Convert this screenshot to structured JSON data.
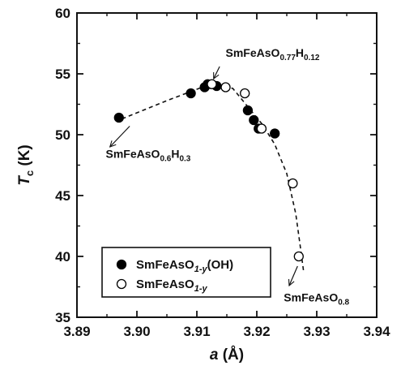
{
  "chart_data": {
    "type": "scatter",
    "xlabel": "a (Å)",
    "ylabel": "Tc (K)",
    "xlim": [
      3.89,
      3.94
    ],
    "ylim": [
      35,
      60
    ],
    "xticks": [
      3.89,
      3.9,
      3.91,
      3.92,
      3.93,
      3.94
    ],
    "yticks": [
      35,
      40,
      45,
      50,
      55,
      60
    ],
    "xtick_labels": [
      "3.89",
      "3.90",
      "3.91",
      "3.92",
      "3.93",
      "3.94"
    ],
    "ytick_labels": [
      "35",
      "40",
      "45",
      "50",
      "55",
      "60"
    ],
    "grid": false,
    "legend_position": "bottom-left",
    "series": [
      {
        "name": "SmFeAsO1-y(OH)",
        "marker": "filled-circle",
        "color": "#000000",
        "points": [
          {
            "x": 3.897,
            "y": 51.4
          },
          {
            "x": 3.909,
            "y": 53.4
          },
          {
            "x": 3.9113,
            "y": 53.9
          },
          {
            "x": 3.9118,
            "y": 54.15
          },
          {
            "x": 3.9133,
            "y": 54.0
          },
          {
            "x": 3.9185,
            "y": 52.0
          },
          {
            "x": 3.9195,
            "y": 51.2
          },
          {
            "x": 3.9203,
            "y": 50.5
          },
          {
            "x": 3.923,
            "y": 50.1
          }
        ]
      },
      {
        "name": "SmFeAsO1-y",
        "marker": "open-circle",
        "color": "#000000",
        "points": [
          {
            "x": 3.9125,
            "y": 54.15
          },
          {
            "x": 3.9148,
            "y": 53.9
          },
          {
            "x": 3.918,
            "y": 53.4
          },
          {
            "x": 3.9208,
            "y": 50.5
          },
          {
            "x": 3.926,
            "y": 46.0
          },
          {
            "x": 3.927,
            "y": 40.0
          }
        ]
      }
    ],
    "trend_line": [
      {
        "x": 3.8975,
        "y": 51.3
      },
      {
        "x": 3.905,
        "y": 52.8
      },
      {
        "x": 3.9125,
        "y": 54.2
      },
      {
        "x": 3.916,
        "y": 53.8
      },
      {
        "x": 3.919,
        "y": 52.0
      },
      {
        "x": 3.921,
        "y": 50.8
      },
      {
        "x": 3.923,
        "y": 49.2
      },
      {
        "x": 3.925,
        "y": 46.8
      },
      {
        "x": 3.9265,
        "y": 43.5
      },
      {
        "x": 3.9272,
        "y": 41.0
      },
      {
        "x": 3.9278,
        "y": 38.8
      }
    ],
    "annotations": [
      {
        "id": "top",
        "base": "SmFeAsO",
        "sub1": "0.77",
        "mid": "H",
        "sub2": "0.12",
        "text_at": {
          "x": 3.9148,
          "y": 56.4
        },
        "arrow_from": {
          "x": 3.9138,
          "y": 55.6
        },
        "arrow_to": {
          "x": 3.9128,
          "y": 54.6
        }
      },
      {
        "id": "left",
        "base": "SmFeAsO",
        "sub1": "0.6",
        "mid": "H",
        "sub2": "0.3",
        "text_at": {
          "x": 3.8948,
          "y": 48.1
        },
        "arrow_from": {
          "x": 3.8988,
          "y": 50.7
        },
        "arrow_to": {
          "x": 3.8955,
          "y": 49.0
        }
      },
      {
        "id": "bottom",
        "base": "SmFeAsO",
        "sub1": "0.8",
        "mid": "",
        "sub2": "",
        "text_at": {
          "x": 3.9245,
          "y": 36.3
        },
        "arrow_from": {
          "x": 3.9268,
          "y": 39.2
        },
        "arrow_to": {
          "x": 3.9254,
          "y": 37.6
        }
      }
    ],
    "legend": [
      {
        "marker": "filled-circle",
        "base": "SmFeAsO",
        "sub": "1-y",
        "suffix": "(OH)"
      },
      {
        "marker": "open-circle",
        "base": "SmFeAsO",
        "sub": "1-y",
        "suffix": ""
      }
    ]
  }
}
